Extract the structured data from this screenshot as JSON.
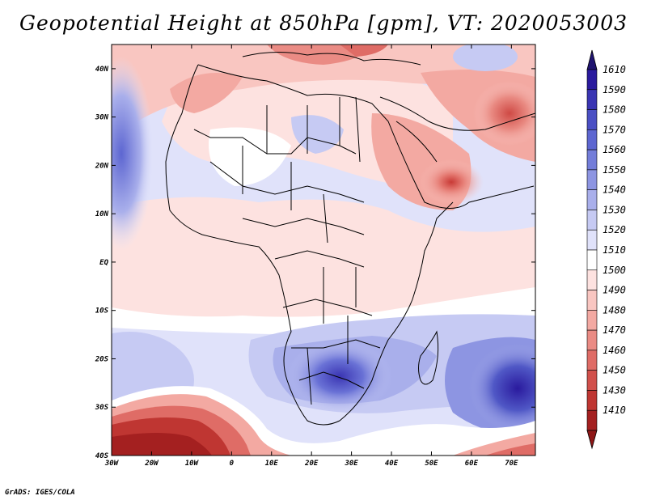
{
  "title": "Geopotential Height at 850hPa [gpm], VT: 2020053003",
  "credit": "GrADS: IGES/COLA",
  "map": {
    "lon_range": [
      -30,
      76
    ],
    "lat_range": [
      -40,
      45
    ],
    "x_ticks": [
      {
        "lon": -30,
        "label": "30W"
      },
      {
        "lon": -20,
        "label": "20W"
      },
      {
        "lon": -10,
        "label": "10W"
      },
      {
        "lon": 0,
        "label": "0"
      },
      {
        "lon": 10,
        "label": "10E"
      },
      {
        "lon": 20,
        "label": "20E"
      },
      {
        "lon": 30,
        "label": "30E"
      },
      {
        "lon": 40,
        "label": "40E"
      },
      {
        "lon": 50,
        "label": "50E"
      },
      {
        "lon": 60,
        "label": "60E"
      },
      {
        "lon": 70,
        "label": "70E"
      }
    ],
    "y_ticks": [
      {
        "lat": 40,
        "label": "40N"
      },
      {
        "lat": 30,
        "label": "30N"
      },
      {
        "lat": 20,
        "label": "20N"
      },
      {
        "lat": 10,
        "label": "10N"
      },
      {
        "lat": 0,
        "label": "EQ"
      },
      {
        "lat": -10,
        "label": "10S"
      },
      {
        "lat": -20,
        "label": "20S"
      },
      {
        "lat": -30,
        "label": "30S"
      },
      {
        "lat": -40,
        "label": "40S"
      }
    ]
  },
  "colorbar": {
    "levels": [
      {
        "label": "1610",
        "color": "#2a1a9e"
      },
      {
        "label": "1590",
        "color": "#3a35b3"
      },
      {
        "label": "1580",
        "color": "#4a4fc4"
      },
      {
        "label": "1570",
        "color": "#5d66d1"
      },
      {
        "label": "1560",
        "color": "#737dd9"
      },
      {
        "label": "1550",
        "color": "#8d95e2"
      },
      {
        "label": "1540",
        "color": "#a9afeb"
      },
      {
        "label": "1530",
        "color": "#c6caf3"
      },
      {
        "label": "1520",
        "color": "#e0e2fa"
      },
      {
        "label": "1510",
        "color": "#ffffff"
      },
      {
        "label": "1500",
        "color": "#fde2e0"
      },
      {
        "label": "1490",
        "color": "#f9c6c1"
      },
      {
        "label": "1480",
        "color": "#f3a9a2"
      },
      {
        "label": "1470",
        "color": "#ea8b84"
      },
      {
        "label": "1460",
        "color": "#df6c66"
      },
      {
        "label": "1450",
        "color": "#d1504b"
      },
      {
        "label": "1430",
        "color": "#bf3632"
      },
      {
        "label": "1410",
        "color": "#a42020"
      }
    ],
    "top_arrow_color": "#201470",
    "bottom_arrow_color": "#8e1616"
  }
}
